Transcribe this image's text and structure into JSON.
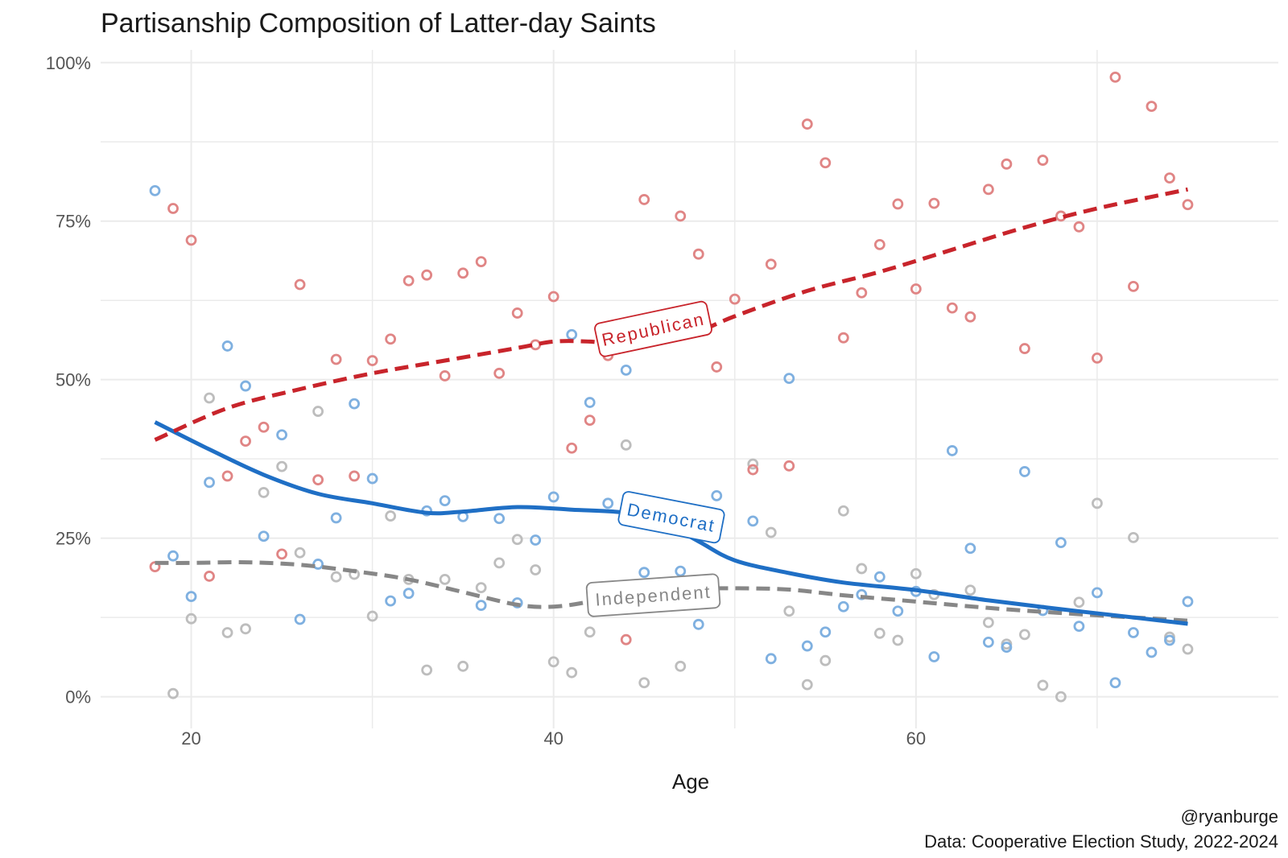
{
  "chart_data": {
    "type": "scatter",
    "title": "Partisanship Composition of Latter-day Saints",
    "xlabel": "Age",
    "ylabel": "",
    "xlim": [
      15,
      80
    ],
    "ylim": [
      -5,
      102
    ],
    "x_ticks": [
      20,
      40,
      60
    ],
    "x_tick_labels": [
      "20",
      "40",
      "60"
    ],
    "y_ticks": [
      0,
      25,
      50,
      75,
      100
    ],
    "y_tick_labels": [
      "0%",
      "25%",
      "50%",
      "75%",
      "100%"
    ],
    "grid": true,
    "legend": "none",
    "series": [
      {
        "name": "Republican",
        "label": "Republican",
        "color": "#c8242b",
        "point_color": "#e08585",
        "line_style": "dashed",
        "points": [
          [
            18,
            20.5
          ],
          [
            19,
            77
          ],
          [
            20,
            72
          ],
          [
            21,
            19
          ],
          [
            22,
            34.8
          ],
          [
            23,
            40.3
          ],
          [
            24,
            42.5
          ],
          [
            25,
            22.5
          ],
          [
            26,
            65
          ],
          [
            27,
            34.2
          ],
          [
            28,
            53.2
          ],
          [
            29,
            34.8
          ],
          [
            30,
            53
          ],
          [
            31,
            56.4
          ],
          [
            32,
            65.6
          ],
          [
            33,
            66.5
          ],
          [
            34,
            50.6
          ],
          [
            35,
            66.8
          ],
          [
            36,
            68.6
          ],
          [
            37,
            51
          ],
          [
            38,
            60.5
          ],
          [
            39,
            55.5
          ],
          [
            40,
            63.1
          ],
          [
            41,
            39.2
          ],
          [
            42,
            43.6
          ],
          [
            43,
            53.8
          ],
          [
            44,
            9
          ],
          [
            45,
            78.4
          ],
          [
            47,
            75.8
          ],
          [
            48,
            69.8
          ],
          [
            49,
            52
          ],
          [
            50,
            62.7
          ],
          [
            51,
            35.8
          ],
          [
            52,
            68.2
          ],
          [
            53,
            36.4
          ],
          [
            54,
            90.3
          ],
          [
            55,
            84.2
          ],
          [
            56,
            56.6
          ],
          [
            57,
            63.7
          ],
          [
            58,
            71.3
          ],
          [
            59,
            77.7
          ],
          [
            60,
            64.3
          ],
          [
            61,
            77.8
          ],
          [
            62,
            61.3
          ],
          [
            63,
            59.9
          ],
          [
            64,
            80
          ],
          [
            65,
            84
          ],
          [
            66,
            54.9
          ],
          [
            67,
            84.6
          ],
          [
            68,
            75.8
          ],
          [
            69,
            74.1
          ],
          [
            70,
            53.4
          ],
          [
            71,
            97.7
          ],
          [
            72,
            64.7
          ],
          [
            73,
            93.1
          ],
          [
            74,
            81.8
          ],
          [
            75,
            77.6
          ]
        ],
        "trend": [
          [
            18,
            40.5
          ],
          [
            22,
            45.5
          ],
          [
            26,
            48.5
          ],
          [
            30,
            51
          ],
          [
            34,
            53
          ],
          [
            38,
            55
          ],
          [
            40,
            56
          ],
          [
            42,
            56
          ],
          [
            44,
            55.5
          ],
          [
            47,
            56.5
          ],
          [
            50,
            60
          ],
          [
            54,
            64
          ],
          [
            58,
            67
          ],
          [
            62,
            70.5
          ],
          [
            66,
            74
          ],
          [
            70,
            77
          ],
          [
            75,
            80
          ]
        ]
      },
      {
        "name": "Democrat",
        "label": "Democrat",
        "color": "#1f6fc5",
        "point_color": "#7fb0e0",
        "line_style": "solid",
        "points": [
          [
            18,
            79.8
          ],
          [
            19,
            22.2
          ],
          [
            20,
            15.8
          ],
          [
            21,
            33.8
          ],
          [
            22,
            55.3
          ],
          [
            23,
            49
          ],
          [
            24,
            25.3
          ],
          [
            25,
            41.3
          ],
          [
            26,
            12.2
          ],
          [
            27,
            20.9
          ],
          [
            28,
            28.2
          ],
          [
            29,
            46.2
          ],
          [
            30,
            34.4
          ],
          [
            31,
            15.1
          ],
          [
            32,
            16.3
          ],
          [
            33,
            29.3
          ],
          [
            34,
            30.9
          ],
          [
            35,
            28.4
          ],
          [
            36,
            14.4
          ],
          [
            37,
            28.1
          ],
          [
            38,
            14.8
          ],
          [
            39,
            24.7
          ],
          [
            40,
            31.5
          ],
          [
            41,
            57.1
          ],
          [
            42,
            46.4
          ],
          [
            43,
            30.5
          ],
          [
            44,
            51.5
          ],
          [
            45,
            19.6
          ],
          [
            47,
            19.8
          ],
          [
            48,
            11.4
          ],
          [
            49,
            31.7
          ],
          [
            51,
            27.7
          ],
          [
            52,
            6
          ],
          [
            53,
            50.2
          ],
          [
            54,
            8
          ],
          [
            55,
            10.2
          ],
          [
            56,
            14.2
          ],
          [
            57,
            16.1
          ],
          [
            58,
            18.9
          ],
          [
            59,
            13.5
          ],
          [
            60,
            16.6
          ],
          [
            61,
            6.3
          ],
          [
            62,
            38.8
          ],
          [
            63,
            23.4
          ],
          [
            64,
            8.6
          ],
          [
            65,
            7.8
          ],
          [
            66,
            35.5
          ],
          [
            67,
            13.6
          ],
          [
            68,
            24.3
          ],
          [
            69,
            11.1
          ],
          [
            70,
            16.4
          ],
          [
            71,
            2.2
          ],
          [
            72,
            10.1
          ],
          [
            73,
            7
          ],
          [
            74,
            8.9
          ],
          [
            75,
            15
          ]
        ],
        "trend": [
          [
            18,
            43.3
          ],
          [
            21,
            39
          ],
          [
            24,
            35
          ],
          [
            27,
            32
          ],
          [
            30,
            30.5
          ],
          [
            33,
            29
          ],
          [
            35,
            29.2
          ],
          [
            38,
            29.9
          ],
          [
            41,
            29.5
          ],
          [
            44,
            29
          ],
          [
            46,
            27.5
          ],
          [
            48,
            24.5
          ],
          [
            50,
            21.5
          ],
          [
            53,
            19.5
          ],
          [
            56,
            18
          ],
          [
            60,
            16.8
          ],
          [
            64,
            15.2
          ],
          [
            68,
            13.8
          ],
          [
            72,
            12.5
          ],
          [
            75,
            11.5
          ]
        ]
      },
      {
        "name": "Independent",
        "label": "Independent",
        "color": "#878787",
        "point_color": "#bdbdbd",
        "line_style": "dashed",
        "points": [
          [
            19,
            0.5
          ],
          [
            20,
            12.3
          ],
          [
            21,
            47.1
          ],
          [
            22,
            10.1
          ],
          [
            23,
            10.7
          ],
          [
            24,
            32.2
          ],
          [
            25,
            36.3
          ],
          [
            26,
            22.7
          ],
          [
            27,
            45
          ],
          [
            28,
            18.9
          ],
          [
            29,
            19.3
          ],
          [
            30,
            12.7
          ],
          [
            31,
            28.5
          ],
          [
            32,
            18.5
          ],
          [
            33,
            4.2
          ],
          [
            34,
            18.5
          ],
          [
            35,
            4.8
          ],
          [
            36,
            17.2
          ],
          [
            37,
            21.1
          ],
          [
            38,
            24.8
          ],
          [
            39,
            20
          ],
          [
            40,
            5.5
          ],
          [
            41,
            3.8
          ],
          [
            42,
            10.2
          ],
          [
            43,
            15.9
          ],
          [
            44,
            39.7
          ],
          [
            45,
            2.2
          ],
          [
            47,
            4.8
          ],
          [
            51,
            36.7
          ],
          [
            52,
            25.9
          ],
          [
            53,
            13.5
          ],
          [
            54,
            1.9
          ],
          [
            55,
            5.7
          ],
          [
            56,
            29.3
          ],
          [
            57,
            20.2
          ],
          [
            58,
            10
          ],
          [
            59,
            8.9
          ],
          [
            60,
            19.4
          ],
          [
            61,
            16.1
          ],
          [
            63,
            16.8
          ],
          [
            64,
            11.7
          ],
          [
            65,
            8.3
          ],
          [
            66,
            9.8
          ],
          [
            67,
            1.8
          ],
          [
            68,
            0
          ],
          [
            69,
            14.9
          ],
          [
            70,
            30.5
          ],
          [
            72,
            25.1
          ],
          [
            74,
            9.4
          ],
          [
            75,
            7.5
          ]
        ],
        "trend": [
          [
            18,
            21.1
          ],
          [
            20,
            21.1
          ],
          [
            23,
            21.2
          ],
          [
            26,
            20.8
          ],
          [
            29,
            19.8
          ],
          [
            32,
            18.5
          ],
          [
            35,
            16.5
          ],
          [
            38,
            14.5
          ],
          [
            40,
            14.2
          ],
          [
            42,
            15
          ],
          [
            44,
            16.3
          ],
          [
            47,
            17
          ],
          [
            50,
            17.1
          ],
          [
            53,
            16.9
          ],
          [
            56,
            16
          ],
          [
            60,
            15
          ],
          [
            64,
            14
          ],
          [
            68,
            13.2
          ],
          [
            72,
            12.5
          ],
          [
            75,
            12
          ]
        ]
      }
    ],
    "annotations": {
      "handle": "@ryanburge",
      "source": "Data: Cooperative Election Study, 2022-2024"
    }
  }
}
